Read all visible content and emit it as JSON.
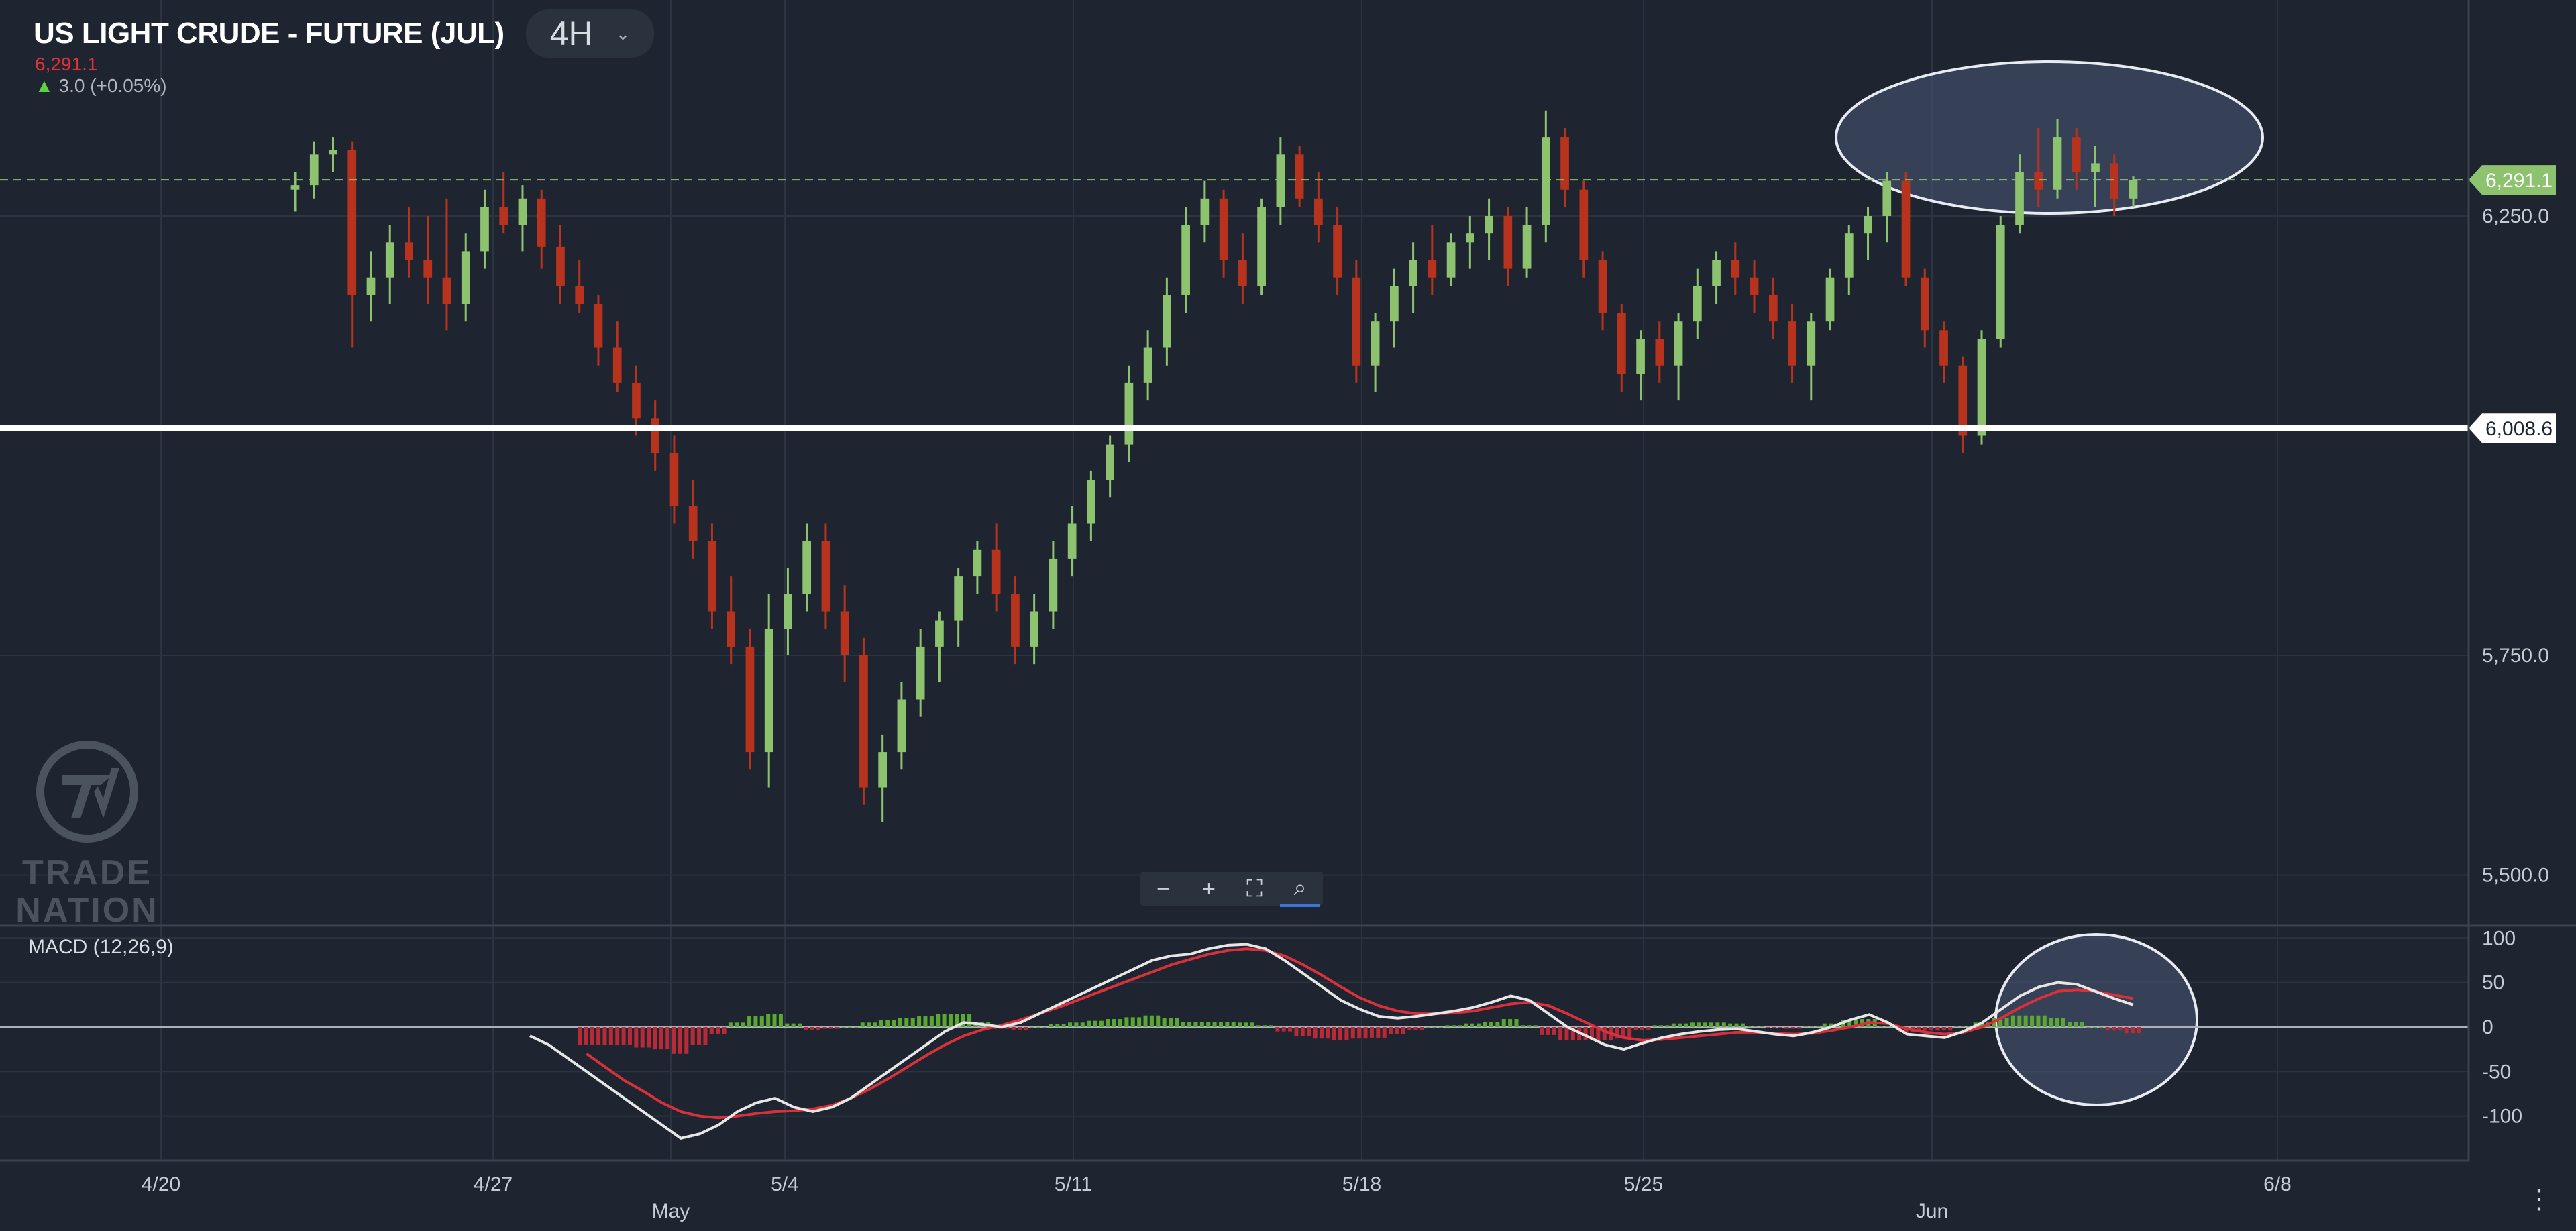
{
  "header": {
    "title": "US LIGHT CRUDE - FUTURE (JUL)",
    "timeframe": "4H",
    "last_price": "6,291.1",
    "change": "3.0 (+0.05%)"
  },
  "zoom_controls": {
    "zoom_out": "−",
    "zoom_in": "+",
    "fit": "⛶",
    "magnify": "⌕"
  },
  "watermark": {
    "name": "TRADE NATION"
  },
  "more_menu": "⋮",
  "colors": {
    "background": "#1e2530",
    "bull": "#8dc26f",
    "bear": "#b8331d",
    "price_line": "#8dc26f",
    "support_line": "#ffffff",
    "macd_line": "#e6e6e6",
    "signal_line": "#d9303b",
    "highlight_fill": "#4a5a78"
  },
  "chart_data": [
    {
      "type": "candlestick",
      "title": "US LIGHT CRUDE - FUTURE (JUL)",
      "x_tick_labels": [
        "4/20",
        "4/27",
        "May",
        "5/4",
        "5/11",
        "5/18",
        "5/25",
        "Jun",
        "6/8"
      ],
      "y_tick_labels": [
        "6,250.0",
        "5,750.0",
        "5,500.0"
      ],
      "ylim": [
        5450,
        6450
      ],
      "price_tags": [
        {
          "label": "6,291.1",
          "value": 6291.1,
          "style": "current-price"
        },
        {
          "label": "6,008.6",
          "value": 6008.6,
          "style": "support-line"
        }
      ],
      "grid": true,
      "ohlc": [
        [
          6280,
          6300,
          6255,
          6285
        ],
        [
          6285,
          6335,
          6270,
          6320
        ],
        [
          6320,
          6340,
          6300,
          6325
        ],
        [
          6325,
          6335,
          6100,
          6160
        ],
        [
          6160,
          6210,
          6130,
          6180
        ],
        [
          6180,
          6240,
          6150,
          6220
        ],
        [
          6220,
          6260,
          6180,
          6200
        ],
        [
          6200,
          6250,
          6150,
          6180
        ],
        [
          6180,
          6270,
          6120,
          6150
        ],
        [
          6150,
          6230,
          6130,
          6210
        ],
        [
          6210,
          6280,
          6190,
          6260
        ],
        [
          6260,
          6300,
          6230,
          6240
        ],
        [
          6240,
          6285,
          6210,
          6270
        ],
        [
          6270,
          6280,
          6190,
          6215
        ],
        [
          6215,
          6240,
          6150,
          6170
        ],
        [
          6170,
          6200,
          6140,
          6150
        ],
        [
          6150,
          6160,
          6080,
          6100
        ],
        [
          6100,
          6130,
          6050,
          6060
        ],
        [
          6060,
          6080,
          6000,
          6020
        ],
        [
          6020,
          6040,
          5960,
          5980
        ],
        [
          5980,
          6000,
          5900,
          5920
        ],
        [
          5920,
          5950,
          5860,
          5880
        ],
        [
          5880,
          5900,
          5780,
          5800
        ],
        [
          5800,
          5840,
          5740,
          5760
        ],
        [
          5760,
          5780,
          5620,
          5640
        ],
        [
          5640,
          5820,
          5600,
          5780
        ],
        [
          5780,
          5850,
          5750,
          5820
        ],
        [
          5820,
          5900,
          5800,
          5880
        ],
        [
          5880,
          5900,
          5780,
          5800
        ],
        [
          5800,
          5830,
          5720,
          5750
        ],
        [
          5750,
          5770,
          5580,
          5600
        ],
        [
          5600,
          5660,
          5560,
          5640
        ],
        [
          5640,
          5720,
          5620,
          5700
        ],
        [
          5700,
          5780,
          5680,
          5760
        ],
        [
          5760,
          5800,
          5720,
          5790
        ],
        [
          5790,
          5850,
          5760,
          5840
        ],
        [
          5840,
          5880,
          5820,
          5870
        ],
        [
          5870,
          5900,
          5800,
          5820
        ],
        [
          5820,
          5840,
          5740,
          5760
        ],
        [
          5760,
          5820,
          5740,
          5800
        ],
        [
          5800,
          5880,
          5780,
          5860
        ],
        [
          5860,
          5920,
          5840,
          5900
        ],
        [
          5900,
          5960,
          5880,
          5950
        ],
        [
          5950,
          6000,
          5930,
          5990
        ],
        [
          5990,
          6080,
          5970,
          6060
        ],
        [
          6060,
          6120,
          6040,
          6100
        ],
        [
          6100,
          6180,
          6080,
          6160
        ],
        [
          6160,
          6260,
          6140,
          6240
        ],
        [
          6240,
          6290,
          6220,
          6270
        ],
        [
          6270,
          6280,
          6180,
          6200
        ],
        [
          6200,
          6230,
          6150,
          6170
        ],
        [
          6170,
          6270,
          6160,
          6260
        ],
        [
          6260,
          6340,
          6240,
          6320
        ],
        [
          6320,
          6330,
          6260,
          6270
        ],
        [
          6270,
          6300,
          6220,
          6240
        ],
        [
          6240,
          6260,
          6160,
          6180
        ],
        [
          6180,
          6200,
          6060,
          6080
        ],
        [
          6080,
          6140,
          6050,
          6130
        ],
        [
          6130,
          6190,
          6100,
          6170
        ],
        [
          6170,
          6220,
          6140,
          6200
        ],
        [
          6200,
          6240,
          6160,
          6180
        ],
        [
          6180,
          6230,
          6170,
          6220
        ],
        [
          6220,
          6250,
          6190,
          6230
        ],
        [
          6230,
          6270,
          6200,
          6250
        ],
        [
          6250,
          6260,
          6170,
          6190
        ],
        [
          6190,
          6260,
          6180,
          6240
        ],
        [
          6240,
          6370,
          6220,
          6340
        ],
        [
          6340,
          6350,
          6260,
          6280
        ],
        [
          6280,
          6290,
          6180,
          6200
        ],
        [
          6200,
          6210,
          6120,
          6140
        ],
        [
          6140,
          6150,
          6050,
          6070
        ],
        [
          6070,
          6120,
          6040,
          6110
        ],
        [
          6110,
          6130,
          6060,
          6080
        ],
        [
          6080,
          6140,
          6040,
          6130
        ],
        [
          6130,
          6190,
          6110,
          6170
        ],
        [
          6170,
          6210,
          6150,
          6200
        ],
        [
          6200,
          6220,
          6160,
          6180
        ],
        [
          6180,
          6200,
          6140,
          6160
        ],
        [
          6160,
          6180,
          6110,
          6130
        ],
        [
          6130,
          6150,
          6060,
          6080
        ],
        [
          6080,
          6140,
          6040,
          6130
        ],
        [
          6130,
          6190,
          6120,
          6180
        ],
        [
          6180,
          6240,
          6160,
          6230
        ],
        [
          6230,
          6260,
          6200,
          6250
        ],
        [
          6250,
          6300,
          6220,
          6290
        ],
        [
          6290,
          6300,
          6170,
          6180
        ],
        [
          6180,
          6190,
          6100,
          6120
        ],
        [
          6120,
          6130,
          6060,
          6080
        ],
        [
          6080,
          6090,
          5980,
          6000
        ],
        [
          6000,
          6120,
          5990,
          6110
        ],
        [
          6110,
          6250,
          6100,
          6240
        ],
        [
          6240,
          6320,
          6230,
          6300
        ],
        [
          6300,
          6350,
          6260,
          6280
        ],
        [
          6280,
          6360,
          6270,
          6340
        ],
        [
          6340,
          6350,
          6280,
          6300
        ],
        [
          6300,
          6330,
          6260,
          6310
        ],
        [
          6310,
          6320,
          6250,
          6270
        ],
        [
          6270,
          6295,
          6260,
          6291
        ]
      ]
    },
    {
      "type": "macd",
      "title": "MACD (12,26,9)",
      "y_tick_labels": [
        "100",
        "50",
        "0",
        "-50",
        "-100"
      ],
      "ylim": [
        -150,
        110
      ],
      "series": [
        {
          "name": "MACD",
          "values": [
            -10,
            -20,
            -35,
            -50,
            -65,
            -80,
            -95,
            -110,
            -125,
            -120,
            -110,
            -95,
            -85,
            -80,
            -90,
            -95,
            -90,
            -80,
            -65,
            -50,
            -35,
            -20,
            -5,
            5,
            3,
            0,
            5,
            15,
            25,
            35,
            45,
            55,
            65,
            75,
            80,
            82,
            88,
            92,
            93,
            88,
            75,
            60,
            45,
            30,
            20,
            12,
            10,
            12,
            15,
            18,
            22,
            28,
            35,
            30,
            15,
            0,
            -10,
            -20,
            -25,
            -18,
            -12,
            -8,
            -5,
            -3,
            -2,
            -5,
            -8,
            -10,
            -6,
            0,
            8,
            14,
            5,
            -8,
            -10,
            -12,
            -5,
            5,
            20,
            35,
            45,
            50,
            48,
            40,
            32,
            25
          ]
        },
        {
          "name": "Signal",
          "values": [
            null,
            null,
            null,
            -30,
            -45,
            -60,
            -72,
            -85,
            -95,
            -100,
            -102,
            -100,
            -97,
            -95,
            -94,
            -92,
            -88,
            -80,
            -70,
            -58,
            -45,
            -32,
            -20,
            -10,
            -3,
            2,
            8,
            15,
            22,
            30,
            38,
            46,
            54,
            62,
            70,
            76,
            82,
            86,
            88,
            86,
            80,
            70,
            58,
            45,
            33,
            24,
            18,
            15,
            15,
            16,
            18,
            22,
            26,
            28,
            24,
            15,
            5,
            -5,
            -12,
            -15,
            -14,
            -12,
            -10,
            -8,
            -6,
            -6,
            -7,
            -8,
            -7,
            -4,
            0,
            5,
            4,
            -2,
            -6,
            -8,
            -6,
            0,
            10,
            22,
            32,
            40,
            42,
            40,
            36,
            32
          ]
        },
        {
          "name": "Histogram",
          "values": [
            null,
            null,
            null,
            -20,
            -20,
            -20,
            -23,
            -25,
            -30,
            -20,
            -8,
            5,
            12,
            15,
            4,
            -3,
            -2,
            0,
            5,
            8,
            10,
            12,
            15,
            15,
            6,
            -2,
            -3,
            0,
            3,
            5,
            7,
            9,
            11,
            13,
            10,
            6,
            6,
            6,
            5,
            2,
            -5,
            -10,
            -13,
            -15,
            -13,
            -12,
            -8,
            -3,
            0,
            2,
            4,
            6,
            9,
            2,
            -9,
            -15,
            -15,
            -15,
            -13,
            -3,
            2,
            4,
            5,
            5,
            4,
            1,
            -1,
            -2,
            1,
            4,
            8,
            9,
            1,
            -6,
            -4,
            -4,
            1,
            5,
            10,
            13,
            13,
            10,
            6,
            0,
            -4,
            -7
          ]
        }
      ]
    }
  ]
}
